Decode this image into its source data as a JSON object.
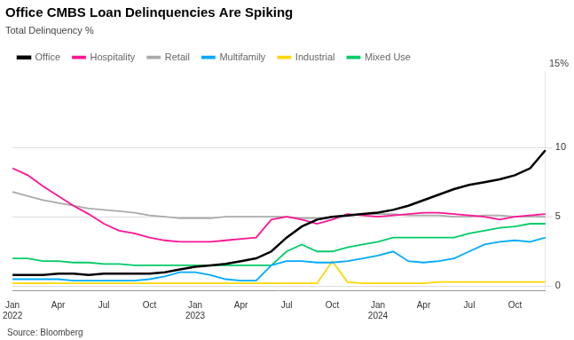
{
  "chart_data": {
    "type": "line",
    "title": "Office CMBS Loan Delinquencies Are Spiking",
    "subtitle": "Total Delinquency %",
    "annotations": [
      "15%",
      "Source: Bloomberg"
    ],
    "categories": [
      "Jan 2022",
      null,
      null,
      "Apr",
      null,
      null,
      "Jul",
      null,
      null,
      "Oct",
      null,
      null,
      "Jan 2023",
      null,
      null,
      "Apr",
      null,
      null,
      "Jul",
      null,
      null,
      "Oct",
      null,
      null,
      "Jan 2024",
      null,
      null,
      "Apr",
      null,
      null,
      "Jul",
      null,
      null,
      "Oct",
      null,
      null
    ],
    "series": [
      {
        "name": "Office",
        "color": "#000000",
        "values": [
          0.8,
          0.8,
          0.8,
          0.9,
          0.9,
          0.8,
          0.9,
          0.9,
          0.9,
          0.9,
          1.0,
          1.2,
          1.4,
          1.5,
          1.6,
          1.8,
          2.0,
          2.5,
          3.5,
          4.3,
          4.8,
          5.0,
          5.1,
          5.2,
          5.3,
          5.5,
          5.8,
          6.2,
          6.6,
          7.0,
          7.3,
          7.5,
          7.7,
          8.0,
          8.5,
          9.8
        ]
      },
      {
        "name": "Hospitality",
        "color": "#ff1493",
        "values": [
          8.5,
          8.0,
          7.2,
          6.5,
          5.8,
          5.2,
          4.5,
          4.0,
          3.8,
          3.5,
          3.3,
          3.2,
          3.2,
          3.2,
          3.3,
          3.4,
          3.5,
          4.8,
          5.0,
          4.8,
          4.5,
          4.8,
          5.2,
          5.1,
          5.0,
          5.1,
          5.2,
          5.3,
          5.3,
          5.2,
          5.1,
          5.0,
          4.8,
          5.0,
          5.1,
          5.2
        ]
      },
      {
        "name": "Retail",
        "color": "#aaaaaa",
        "values": [
          6.8,
          6.5,
          6.2,
          6.0,
          5.8,
          5.6,
          5.5,
          5.4,
          5.3,
          5.1,
          5.0,
          4.9,
          4.9,
          4.9,
          5.0,
          5.0,
          5.0,
          5.0,
          5.0,
          4.9,
          4.9,
          5.0,
          5.1,
          5.2,
          5.2,
          5.2,
          5.1,
          5.1,
          5.1,
          5.0,
          5.0,
          5.1,
          5.1,
          5.0,
          5.0,
          5.0
        ]
      },
      {
        "name": "Multifamily",
        "color": "#00aaff",
        "values": [
          0.5,
          0.5,
          0.5,
          0.5,
          0.4,
          0.4,
          0.4,
          0.4,
          0.4,
          0.5,
          0.7,
          1.0,
          1.0,
          0.8,
          0.5,
          0.4,
          0.4,
          1.5,
          1.8,
          1.8,
          1.7,
          1.7,
          1.8,
          2.0,
          2.2,
          2.5,
          1.8,
          1.7,
          1.8,
          2.0,
          2.5,
          3.0,
          3.2,
          3.3,
          3.2,
          3.5
        ]
      },
      {
        "name": "Industrial",
        "color": "#ffd700",
        "values": [
          0.2,
          0.2,
          0.2,
          0.2,
          0.2,
          0.2,
          0.2,
          0.2,
          0.2,
          0.2,
          0.2,
          0.2,
          0.2,
          0.2,
          0.2,
          0.2,
          0.2,
          0.2,
          0.2,
          0.2,
          0.2,
          1.8,
          0.3,
          0.2,
          0.2,
          0.2,
          0.2,
          0.2,
          0.3,
          0.3,
          0.3,
          0.3,
          0.3,
          0.3,
          0.3,
          0.3
        ]
      },
      {
        "name": "Mixed Use",
        "color": "#00cc66",
        "values": [
          2.0,
          2.0,
          1.8,
          1.8,
          1.7,
          1.7,
          1.6,
          1.6,
          1.5,
          1.5,
          1.5,
          1.5,
          1.5,
          1.5,
          1.5,
          1.5,
          1.5,
          1.5,
          2.5,
          3.0,
          2.5,
          2.5,
          2.8,
          3.0,
          3.2,
          3.5,
          3.5,
          3.5,
          3.5,
          3.5,
          3.8,
          4.0,
          4.2,
          4.3,
          4.5,
          4.5
        ]
      }
    ],
    "ylim": [
      -0.3,
      15.5
    ],
    "yticks": [
      0,
      5,
      10
    ],
    "grid": true,
    "legend": "top"
  }
}
